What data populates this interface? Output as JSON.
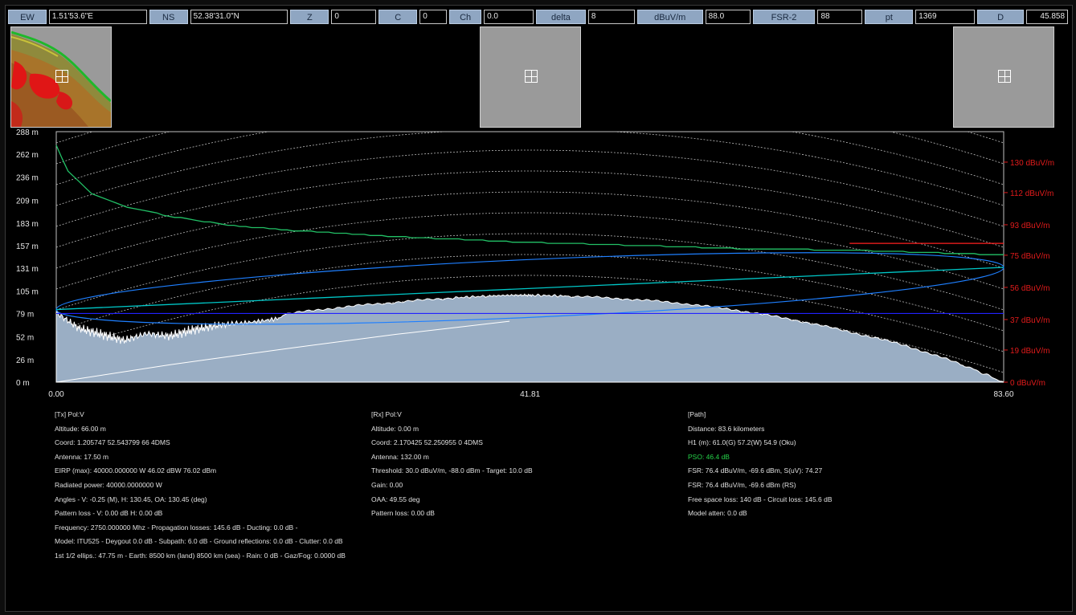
{
  "toolbar": {
    "fields": [
      {
        "label": "EW",
        "value": "1.51'53.6\"E"
      },
      {
        "label": "NS",
        "value": "52.38'31.0\"N"
      },
      {
        "label": "Z",
        "value": "0"
      },
      {
        "label": "C",
        "value": "0"
      },
      {
        "label": "Ch",
        "value": "0.0"
      },
      {
        "label": "delta",
        "value": "8"
      },
      {
        "label": "dBuV/m",
        "value": "88.0"
      },
      {
        "label": "FSR-2",
        "value": "88"
      },
      {
        "label": "pt",
        "value": "1369"
      },
      {
        "label": "D",
        "value": "45.858"
      }
    ]
  },
  "thumbnails": [
    {
      "name": "tx-terrain-map",
      "state": "loaded"
    },
    {
      "name": "rx-map",
      "state": "empty"
    },
    {
      "name": "target-map",
      "state": "empty"
    }
  ],
  "colors": {
    "terrain_fill": "#9aaec4",
    "terrain_edge": "#ffffff",
    "tx_ray": "#00c8c8",
    "fresnel": "#1e7fff",
    "los_line": "#2222ff",
    "field_strength": "#22c066",
    "threshold": "#ff2020",
    "right_axis": "#e21b1b",
    "pso_text": "#26d44a"
  },
  "chart_data": {
    "type": "line",
    "xlabel": "",
    "ylabel": "",
    "x_ticks": [
      "0.00",
      "41.81",
      "83.60"
    ],
    "xlim": [
      0,
      83.6
    ],
    "y_left_ticks": [
      "0 m",
      "26 m",
      "52 m",
      "79 m",
      "105 m",
      "131 m",
      "157 m",
      "183 m",
      "209 m",
      "236 m",
      "262 m",
      "288 m"
    ],
    "ylim_left": [
      0,
      288
    ],
    "y_right_ticks": [
      "0 dBuV/m",
      "19 dBuV/m",
      "37 dBuV/m",
      "56 dBuV/m",
      "75 dBuV/m",
      "93 dBuV/m",
      "112 dBuV/m",
      "130 dBuV/m"
    ],
    "ylim_right": [
      0,
      148
    ],
    "grid": "curved earth-curvature reference lines",
    "series": [
      {
        "key": "terrain",
        "x": [
          0,
          2,
          4,
          6,
          8,
          10,
          12,
          14,
          16,
          20,
          25,
          30,
          35,
          38,
          40,
          42,
          45,
          50,
          55,
          60,
          65,
          70,
          75,
          80,
          83.6
        ],
        "values": [
          80,
          62,
          55,
          48,
          56,
          53,
          60,
          65,
          68,
          78,
          86,
          92,
          97,
          99,
          100,
          100,
          99,
          96,
          91,
          83,
          72,
          58,
          42,
          20,
          0
        ]
      },
      {
        "key": "field_strength",
        "x": [
          0,
          1,
          3,
          6,
          10,
          15,
          20,
          30,
          40,
          50,
          60,
          70,
          80,
          83.6
        ],
        "values": [
          140,
          125,
          112,
          104,
          98,
          93,
          90,
          86,
          83,
          81,
          79,
          78,
          76,
          75
        ]
      },
      {
        "key": "threshold",
        "x": [
          70,
          83.6
        ],
        "values": [
          82,
          82
        ]
      },
      {
        "key": "earth_curve",
        "x": [
          0,
          10,
          20,
          30,
          40
        ],
        "values": [
          0,
          20,
          38,
          55,
          70
        ]
      },
      {
        "key": "direct_ray",
        "x": [
          0,
          83.6
        ],
        "values": [
          83.5,
          132
        ]
      },
      {
        "key": "los_line",
        "x": [
          0,
          83.6
        ],
        "values": [
          79,
          79
        ]
      }
    ]
  },
  "tx": {
    "title": "[Tx] Pol:V",
    "lines": [
      "Altitude: 66.00 m",
      "Coord: 1.205747 52.543799 66 4DMS",
      "Antenna: 17.50 m",
      "EIRP (max): 40000.000000 W 46.02 dBW 76.02 dBm",
      "Radiated power: 40000.0000000 W",
      "Angles - V: -0.25 (M), H: 130.45, OA: 130.45 (deg)",
      "Pattern loss - V: 0.00 dB H: 0.00 dB",
      "Frequency: 2750.000000 Mhz - Propagation losses: 145.6 dB - Ducting: 0.0 dB -",
      "Model: ITU525 - Deygout 0.0 dB - Subpath: 6.0 dB - Ground reflections: 0.0 dB - Clutter: 0.0 dB",
      "1st 1/2 ellips.: 47.75 m - Earth: 8500 km (land) 8500 km (sea) - Rain: 0 dB - Gaz/Fog: 0.0000 dB"
    ]
  },
  "rx": {
    "title": "[Rx] Pol:V",
    "lines": [
      "Altitude: 0.00 m",
      "Coord: 2.170425 52.250955 0 4DMS",
      "Antenna: 132.00 m",
      "Threshold: 30.0 dBuV/m, -88.0 dBm - Target: 10.0 dB",
      "Gain: 0.00",
      "OAA: 49.55 deg",
      "Pattern loss: 0.00 dB"
    ]
  },
  "path": {
    "title": "[Path]",
    "distance": "Distance: 83.6 kilometers",
    "h1": "H1 (m): 61.0(G) 57.2(W) 54.9 (Oku)",
    "pso": "PSO: 46.4 dB",
    "fsr1": "FSR: 76.4 dBuV/m, -69.6 dBm, S(uV): 74.27",
    "fsr2": "FSR: 76.4 dBuV/m, -69.6 dBm (RS)",
    "losses": "Free space loss: 140 dB - Circuit loss: 145.6 dB",
    "atten": "Model atten: 0.0 dB"
  }
}
